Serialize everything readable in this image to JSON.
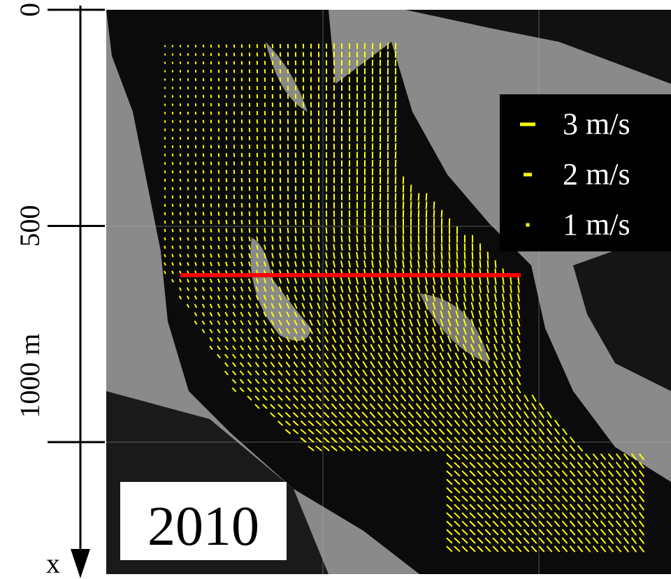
{
  "axis": {
    "label": "x",
    "ticks": [
      0,
      500,
      {
        "value": 1000,
        "label": "1000 m"
      }
    ]
  },
  "legend": [
    "3 m/s",
    "2 m/s",
    "1 m/s"
  ],
  "year": "2010"
}
